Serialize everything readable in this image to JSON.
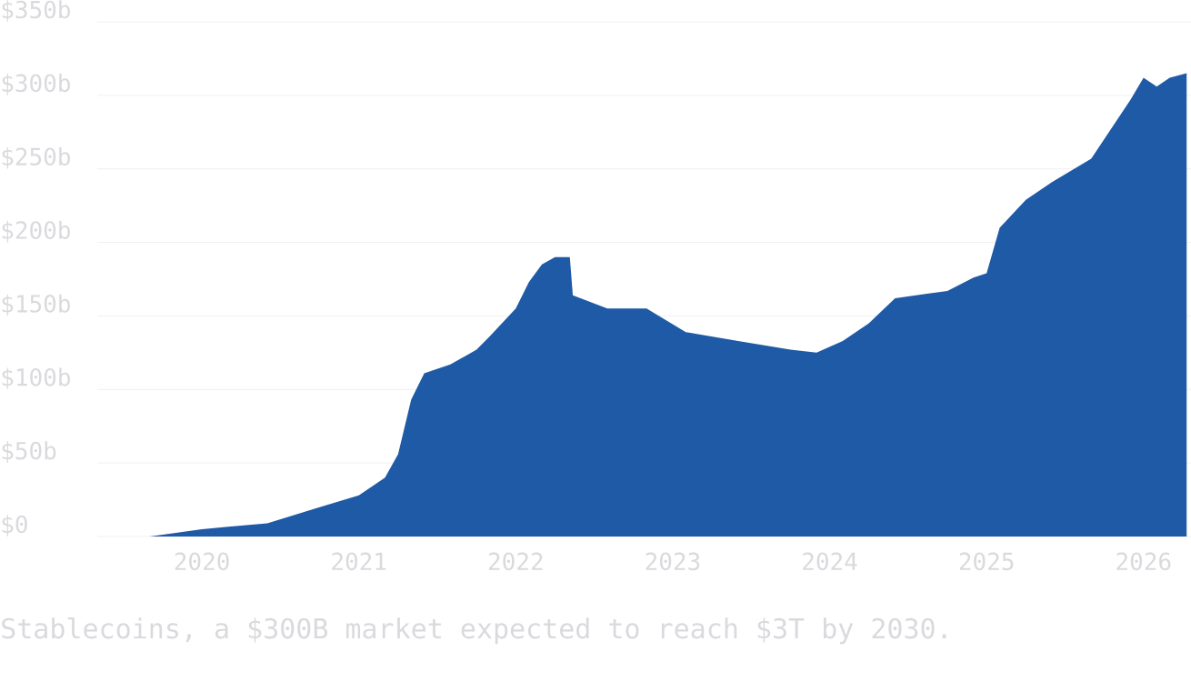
{
  "chart_data": {
    "type": "area",
    "x": [
      "2019-09",
      "2020-01",
      "2020-06",
      "2020-10",
      "2021-01",
      "2021-03",
      "2021-04",
      "2021-05",
      "2021-06",
      "2021-08",
      "2021-10",
      "2021-11",
      "2022-01",
      "2022-02",
      "2022-03",
      "2022-04",
      "2022-05-05",
      "2022-05-12",
      "2022-08",
      "2022-11",
      "2023-02",
      "2023-06",
      "2023-10",
      "2023-12",
      "2024-02",
      "2024-04",
      "2024-06",
      "2024-10",
      "2024-12",
      "2025-01",
      "2025-02",
      "2025-04",
      "2025-06",
      "2025-09",
      "2025-12",
      "2026-01",
      "2026-02",
      "2026-03",
      "2026-04-10"
    ],
    "values": [
      0,
      5,
      9,
      20,
      28,
      40,
      56,
      93,
      111,
      117,
      127,
      136,
      155,
      173,
      185,
      190,
      190,
      164,
      155,
      155,
      139,
      133,
      127,
      125,
      133,
      145,
      162,
      167,
      176,
      179,
      210,
      229,
      241,
      257,
      297,
      312,
      306,
      312,
      315
    ],
    "color": "#1f5aa6",
    "xlim": [
      "2019-05",
      "2026-04-20"
    ],
    "xticks": [
      "2020",
      "2021",
      "2022",
      "2023",
      "2024",
      "2025",
      "2026"
    ],
    "ylim": [
      0,
      350
    ],
    "yticks": [
      {
        "value": 0,
        "label": "$0"
      },
      {
        "value": 50,
        "label": "$50b"
      },
      {
        "value": 100,
        "label": "$100b"
      },
      {
        "value": 150,
        "label": "$150b"
      },
      {
        "value": 200,
        "label": "$200b"
      },
      {
        "value": 250,
        "label": "$250b"
      },
      {
        "value": 300,
        "label": "$300b"
      },
      {
        "value": 350,
        "label": "$350b"
      }
    ],
    "grid": "y",
    "annotations": [
      "Stablecoins, a $300B market expected to reach $3T by 2030."
    ]
  }
}
